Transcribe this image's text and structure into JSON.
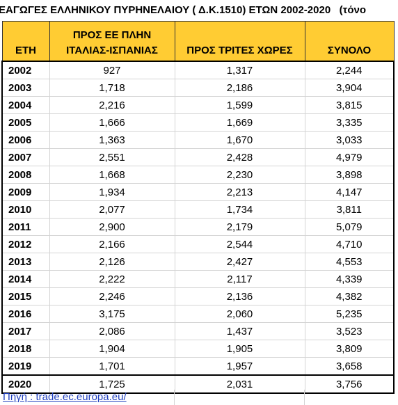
{
  "title": "ΕΑΓΩΓΕΣ ΕΛΛΗΝΙΚΟΥ ΠΥΡΗΝΕΛΑΙΟΥ ( Δ.Κ.1510) ΕΤΩΝ 2002-2020   (τόνο",
  "table": {
    "header": [
      "ΕΤΗ",
      "ΠΡΟΣ ΕΕ ΠΛΗΝ ΙΤΑΛΙΑΣ-ΙΣΠΑΝΙΑΣ",
      "ΠΡΟΣ ΤΡΙΤΕΣ ΧΩΡΕΣ",
      "ΣΥΝΟΛΟ"
    ],
    "rows": [
      [
        "2002",
        "927",
        "1,317",
        "2,244"
      ],
      [
        "2003",
        "1,718",
        "2,186",
        "3,904"
      ],
      [
        "2004",
        "2,216",
        "1,599",
        "3,815"
      ],
      [
        "2005",
        "1,666",
        "1,669",
        "3,335"
      ],
      [
        "2006",
        "1,363",
        "1,670",
        "3,033"
      ],
      [
        "2007",
        "2,551",
        "2,428",
        "4,979"
      ],
      [
        "2008",
        "1,668",
        "2,230",
        "3,898"
      ],
      [
        "2009",
        "1,934",
        "2,213",
        "4,147"
      ],
      [
        "2010",
        "2,077",
        "1,734",
        "3,811"
      ],
      [
        "2011",
        "2,900",
        "2,179",
        "5,079"
      ],
      [
        "2012",
        "2,166",
        "2,544",
        "4,710"
      ],
      [
        "2013",
        "2,126",
        "2,427",
        "4,553"
      ],
      [
        "2014",
        "2,222",
        "2,117",
        "4,339"
      ],
      [
        "2015",
        "2,246",
        "2,136",
        "4,382"
      ],
      [
        "2016",
        "3,175",
        "2,060",
        "5,235"
      ],
      [
        "2017",
        "2,086",
        "1,437",
        "3,523"
      ],
      [
        "2018",
        "1,904",
        "1,905",
        "3,809"
      ],
      [
        "2019",
        "1,701",
        "1,957",
        "3,658"
      ],
      [
        "2020",
        "1,725",
        "2,031",
        "3,756"
      ]
    ]
  },
  "source": "Πηγή : trade.ec.europa.eu/"
}
